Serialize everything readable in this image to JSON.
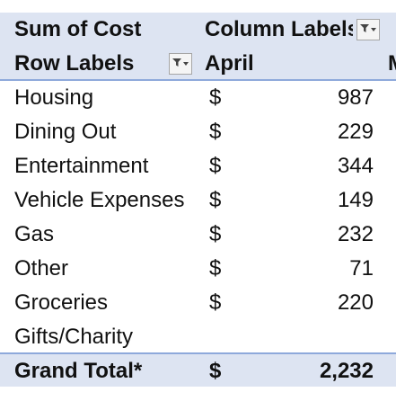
{
  "pivot": {
    "measure_label": "Sum of Cost",
    "column_labels_header": "Column Labels",
    "row_labels_header": "Row Labels",
    "column": "April",
    "next_column_partial": "M",
    "rows": [
      {
        "label": "Housing",
        "currency": "$",
        "value": "987"
      },
      {
        "label": "Dining Out",
        "currency": "$",
        "value": "229"
      },
      {
        "label": "Entertainment",
        "currency": "$",
        "value": "344"
      },
      {
        "label": "Vehicle Expenses",
        "currency": "$",
        "value": "149"
      },
      {
        "label": "Gas",
        "currency": "$",
        "value": "232"
      },
      {
        "label": "Other",
        "currency": "$",
        "value": "71"
      },
      {
        "label": "Groceries",
        "currency": "$",
        "value": "220"
      },
      {
        "label": "Gifts/Charity",
        "currency": "",
        "value": ""
      }
    ],
    "grand_total": {
      "label": "Grand Total*",
      "currency": "$",
      "value": "2,232"
    }
  },
  "icons": {
    "column_filter": "filter-dropdown-icon",
    "row_filter": "filter-dropdown-icon"
  },
  "colors": {
    "header_fill": "#dde4f2",
    "header_border": "#8ea9db"
  }
}
